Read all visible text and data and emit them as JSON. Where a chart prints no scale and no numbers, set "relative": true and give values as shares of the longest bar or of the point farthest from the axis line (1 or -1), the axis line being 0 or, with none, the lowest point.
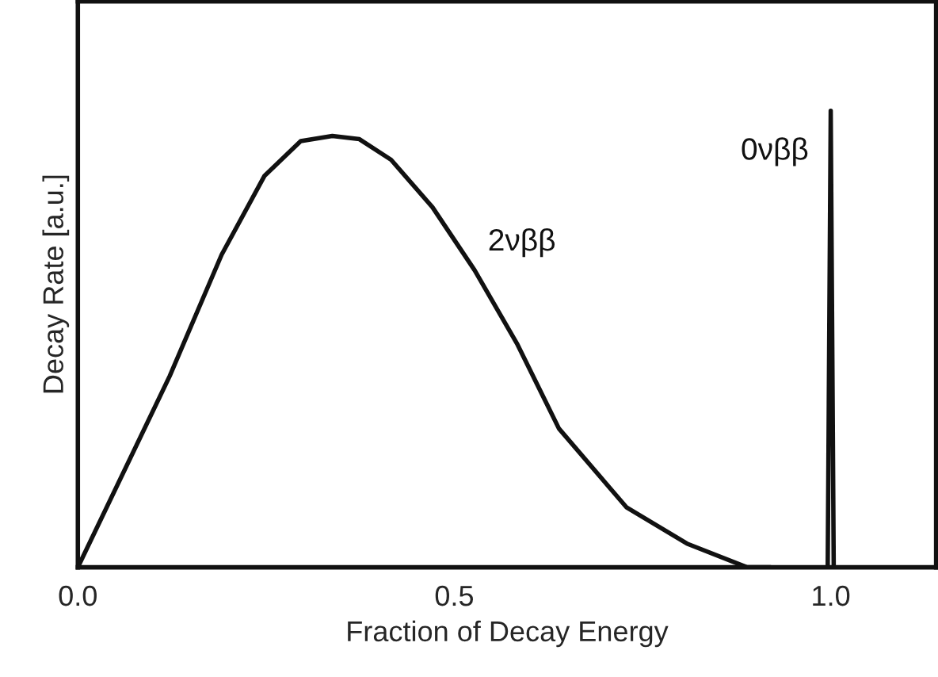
{
  "chart_data": {
    "type": "line",
    "relative": true,
    "xlabel": "Fraction of Decay Energy",
    "ylabel": "Decay Rate [a.u.]",
    "xlim": [
      0,
      1.14
    ],
    "xticks": [
      {
        "value": 0,
        "label": "0.0"
      },
      0.5,
      {
        "value": 1,
        "label": "1.0"
      }
    ],
    "grid": false,
    "legend": false,
    "marker": "none",
    "line_style": "solid",
    "series": [
      {
        "name": "2νββ",
        "color": "#111111",
        "x": [
          0,
          0.122,
          0.191,
          0.248,
          0.296,
          0.338,
          0.374,
          0.416,
          0.471,
          0.527,
          0.584,
          0.639,
          0.729,
          0.809,
          0.889,
          0.92
        ],
        "values": [
          0,
          0.419,
          0.685,
          0.858,
          0.934,
          0.945,
          0.938,
          0.893,
          0.789,
          0.651,
          0.488,
          0.304,
          0.131,
          0.052,
          0,
          0
        ]
      },
      {
        "name": "0νββ",
        "color": "#111111",
        "x": [
          0.996,
          1.0,
          1.004
        ],
        "values": [
          0,
          1,
          0
        ]
      }
    ]
  }
}
